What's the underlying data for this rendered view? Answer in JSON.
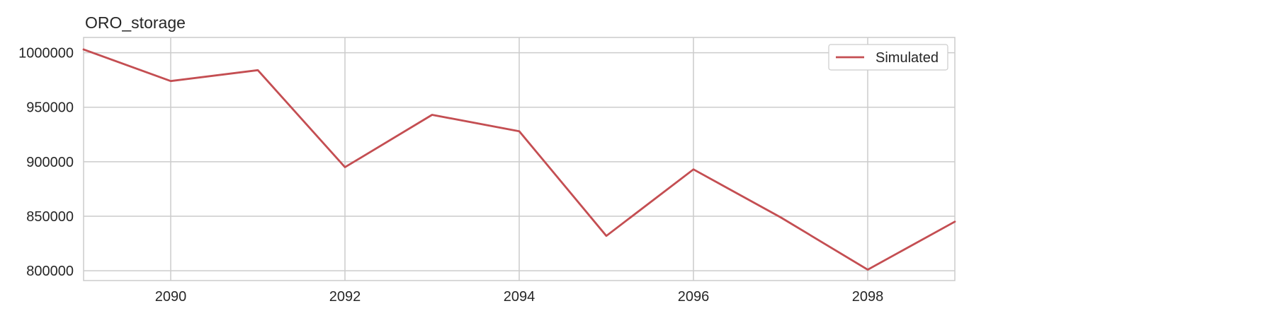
{
  "chart_data": {
    "type": "line",
    "title": "ORO_storage",
    "xlabel": "",
    "ylabel": "",
    "x": [
      2089,
      2090,
      2091,
      2092,
      2093,
      2094,
      2095,
      2096,
      2097,
      2098,
      2099
    ],
    "series": [
      {
        "name": "Simulated",
        "color": "#c44e52",
        "values": [
          1003000,
          974000,
          984000,
          895000,
          943000,
          928000,
          832000,
          893000,
          849000,
          801000,
          845000
        ]
      }
    ],
    "xlim": [
      2089,
      2099
    ],
    "ylim": [
      791000,
      1014000
    ],
    "xticks": [
      2090,
      2092,
      2094,
      2096,
      2098
    ],
    "yticks": [
      800000,
      850000,
      900000,
      950000,
      1000000
    ],
    "grid": true,
    "legend_position": "top-right"
  }
}
